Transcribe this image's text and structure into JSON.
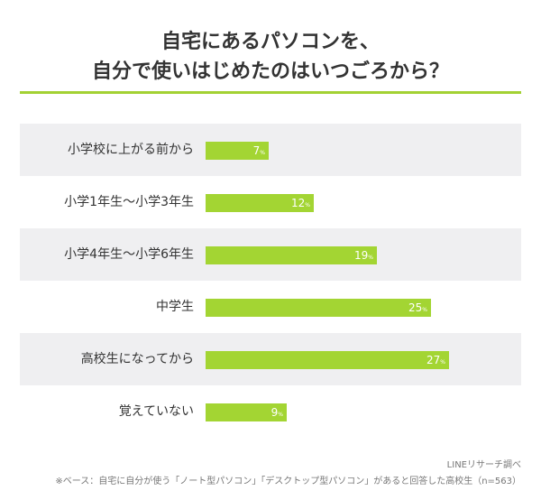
{
  "title": {
    "line1": "自宅にあるパソコンを、",
    "line2": "自分で使いはじめたのはいつごろから？"
  },
  "colors": {
    "accent": "#a3d133",
    "bar": "#a3d533",
    "row_shade": "#efeff1"
  },
  "chart_data": {
    "type": "bar",
    "orientation": "horizontal",
    "categories": [
      "小学校に上がる前から",
      "小学1年生〜小学3年生",
      "小学4年生〜小学6年生",
      "中学生",
      "高校生になってから",
      "覚えていない"
    ],
    "values": [
      7,
      12,
      19,
      25,
      27,
      9
    ],
    "value_unit": "%",
    "xlim": [
      0,
      35
    ],
    "grid": false,
    "legend": "none"
  },
  "source": "LINEリサーチ調べ",
  "footnote": "※ベース：自宅に自分が使う「ノート型パソコン」「デスクトップ型パソコン」があると回答した高校生（n=563）"
}
